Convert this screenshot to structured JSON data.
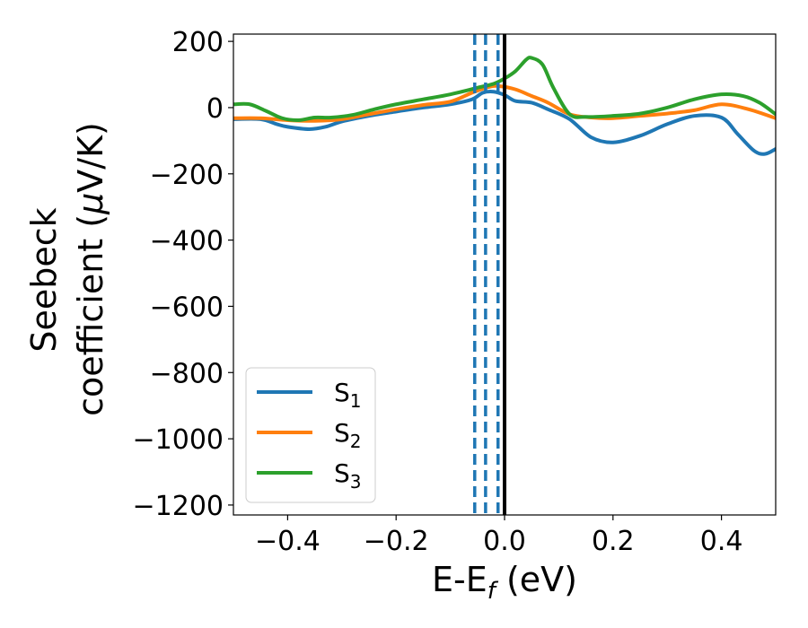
{
  "chart_data": {
    "type": "line",
    "xlabel": "E-E",
    "xlabel_sub": "f",
    "xlabel_unit": " (eV)",
    "ylabel_line1": "Seebeck",
    "ylabel_line2": "coefficient  (",
    "ylabel_mu": "μ",
    "ylabel_unit_tail": "V/K)",
    "xlim": [
      -0.5,
      0.5
    ],
    "ylim": [
      -1230,
      222
    ],
    "xticks": [
      -0.4,
      -0.2,
      0.0,
      0.2,
      0.4
    ],
    "xtick_labels": [
      "−0.4",
      "−0.2",
      "0.0",
      "0.2",
      "0.4"
    ],
    "yticks": [
      200,
      0,
      -200,
      -400,
      -600,
      -800,
      -1000,
      -1200
    ],
    "ytick_labels": [
      "200",
      "0",
      "−200",
      "−400",
      "−600",
      "−800",
      "−1000",
      "−1200"
    ],
    "grid": false,
    "legend_position": "lower-left",
    "vlines_solid": [
      {
        "x": 0.0,
        "color": "#000000"
      }
    ],
    "vlines_dashed": [
      {
        "x": -0.055,
        "color": "#1f77b4"
      },
      {
        "x": -0.035,
        "color": "#1f77b4"
      },
      {
        "x": -0.012,
        "color": "#1f77b4"
      }
    ],
    "series": [
      {
        "name": "S",
        "sub": "1",
        "color": "#1f77b4",
        "points": [
          [
            -0.5,
            -35
          ],
          [
            -0.45,
            -35
          ],
          [
            -0.42,
            -50
          ],
          [
            -0.4,
            -58
          ],
          [
            -0.36,
            -65
          ],
          [
            -0.33,
            -58
          ],
          [
            -0.3,
            -42
          ],
          [
            -0.25,
            -25
          ],
          [
            -0.2,
            -12
          ],
          [
            -0.15,
            0
          ],
          [
            -0.1,
            10
          ],
          [
            -0.06,
            25
          ],
          [
            -0.04,
            45
          ],
          [
            -0.02,
            48
          ],
          [
            0.0,
            38
          ],
          [
            0.02,
            20
          ],
          [
            0.05,
            15
          ],
          [
            0.08,
            -5
          ],
          [
            0.12,
            -35
          ],
          [
            0.16,
            -90
          ],
          [
            0.2,
            -105
          ],
          [
            0.25,
            -85
          ],
          [
            0.3,
            -50
          ],
          [
            0.35,
            -25
          ],
          [
            0.4,
            -30
          ],
          [
            0.43,
            -80
          ],
          [
            0.46,
            -130
          ],
          [
            0.48,
            -140
          ],
          [
            0.5,
            -125
          ]
        ]
      },
      {
        "name": "S",
        "sub": "2",
        "color": "#ff7f0e",
        "points": [
          [
            -0.5,
            -32
          ],
          [
            -0.45,
            -32
          ],
          [
            -0.4,
            -38
          ],
          [
            -0.35,
            -40
          ],
          [
            -0.3,
            -35
          ],
          [
            -0.25,
            -20
          ],
          [
            -0.2,
            -5
          ],
          [
            -0.15,
            8
          ],
          [
            -0.1,
            18
          ],
          [
            -0.06,
            45
          ],
          [
            -0.03,
            62
          ],
          [
            -0.01,
            65
          ],
          [
            0.02,
            55
          ],
          [
            0.05,
            35
          ],
          [
            0.08,
            15
          ],
          [
            0.12,
            -20
          ],
          [
            0.16,
            -30
          ],
          [
            0.2,
            -32
          ],
          [
            0.25,
            -25
          ],
          [
            0.3,
            -18
          ],
          [
            0.35,
            -8
          ],
          [
            0.4,
            10
          ],
          [
            0.45,
            -5
          ],
          [
            0.5,
            -32
          ]
        ]
      },
      {
        "name": "S",
        "sub": "3",
        "color": "#2ca02c",
        "points": [
          [
            -0.5,
            10
          ],
          [
            -0.47,
            10
          ],
          [
            -0.44,
            -10
          ],
          [
            -0.41,
            -32
          ],
          [
            -0.38,
            -38
          ],
          [
            -0.35,
            -30
          ],
          [
            -0.32,
            -30
          ],
          [
            -0.28,
            -22
          ],
          [
            -0.24,
            -5
          ],
          [
            -0.2,
            10
          ],
          [
            -0.15,
            25
          ],
          [
            -0.1,
            40
          ],
          [
            -0.05,
            60
          ],
          [
            -0.02,
            72
          ],
          [
            0.0,
            88
          ],
          [
            0.02,
            110
          ],
          [
            0.04,
            145
          ],
          [
            0.05,
            150
          ],
          [
            0.07,
            130
          ],
          [
            0.09,
            60
          ],
          [
            0.12,
            -20
          ],
          [
            0.15,
            -28
          ],
          [
            0.2,
            -25
          ],
          [
            0.25,
            -18
          ],
          [
            0.3,
            0
          ],
          [
            0.35,
            25
          ],
          [
            0.4,
            40
          ],
          [
            0.44,
            35
          ],
          [
            0.47,
            15
          ],
          [
            0.5,
            -20
          ]
        ]
      }
    ]
  }
}
